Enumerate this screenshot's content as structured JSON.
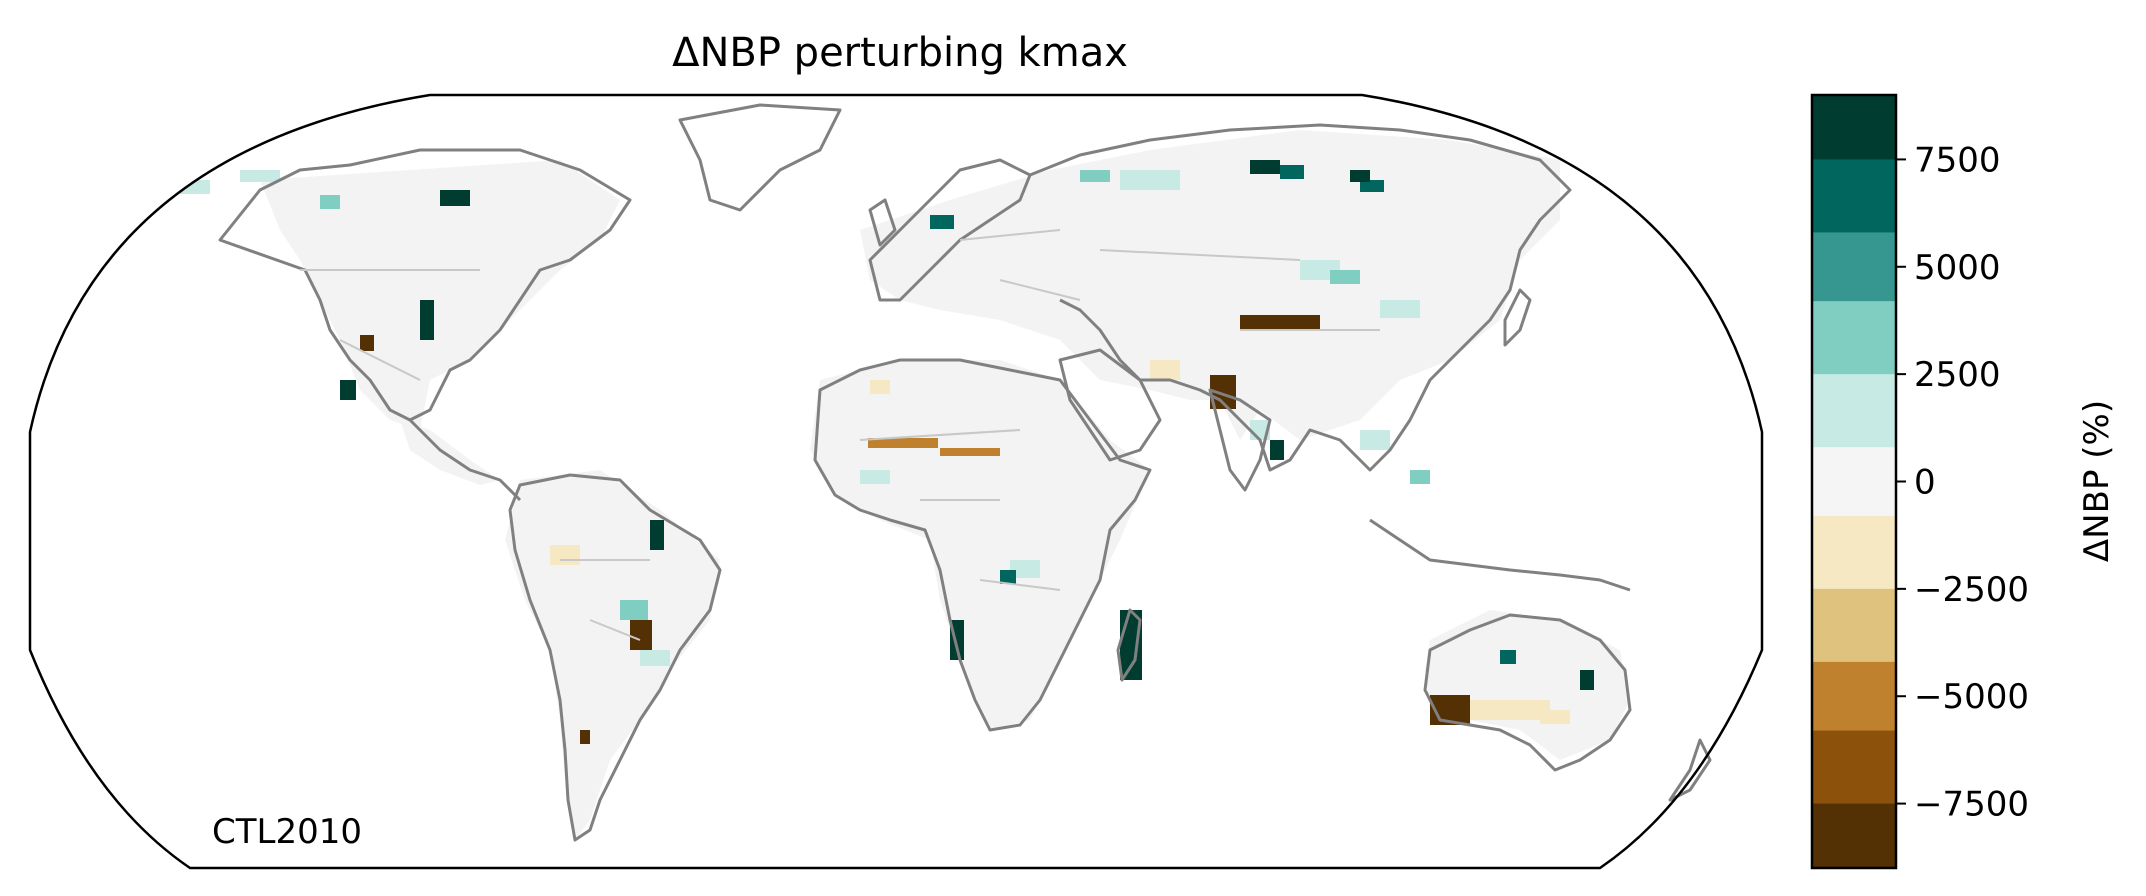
{
  "title": "ΔNBP perturbing kmax",
  "annotation": "CTL2010",
  "colorbar": {
    "label": "ΔNBP (%)",
    "min": -9000,
    "max": 9000,
    "ticks": [
      {
        "value": 7500,
        "label": "7500"
      },
      {
        "value": 5000,
        "label": "5000"
      },
      {
        "value": 2500,
        "label": "2500"
      },
      {
        "value": 0,
        "label": "0"
      },
      {
        "value": -2500,
        "label": "−2500"
      },
      {
        "value": -5000,
        "label": "−5000"
      },
      {
        "value": -7500,
        "label": "−7500"
      }
    ],
    "bins": [
      {
        "from": 7500,
        "to": 9000,
        "color": "#003c30"
      },
      {
        "from": 5800,
        "to": 7500,
        "color": "#01665e"
      },
      {
        "from": 4200,
        "to": 5800,
        "color": "#35978f"
      },
      {
        "from": 2500,
        "to": 4200,
        "color": "#80cdc1"
      },
      {
        "from": 800,
        "to": 2500,
        "color": "#c7eae5"
      },
      {
        "from": -800,
        "to": 800,
        "color": "#f5f5f5"
      },
      {
        "from": -2500,
        "to": -800,
        "color": "#f6e8c3"
      },
      {
        "from": -4200,
        "to": -2500,
        "color": "#dfc27d"
      },
      {
        "from": -5800,
        "to": -4200,
        "color": "#bf812d"
      },
      {
        "from": -7500,
        "to": -5800,
        "color": "#8c510a"
      },
      {
        "from": -9000,
        "to": -7500,
        "color": "#543005"
      }
    ]
  },
  "map": {
    "projection": "Robinson",
    "coastline_color": "#808080",
    "border_color": "#c8c8c8",
    "outline_color": "#000000"
  }
}
